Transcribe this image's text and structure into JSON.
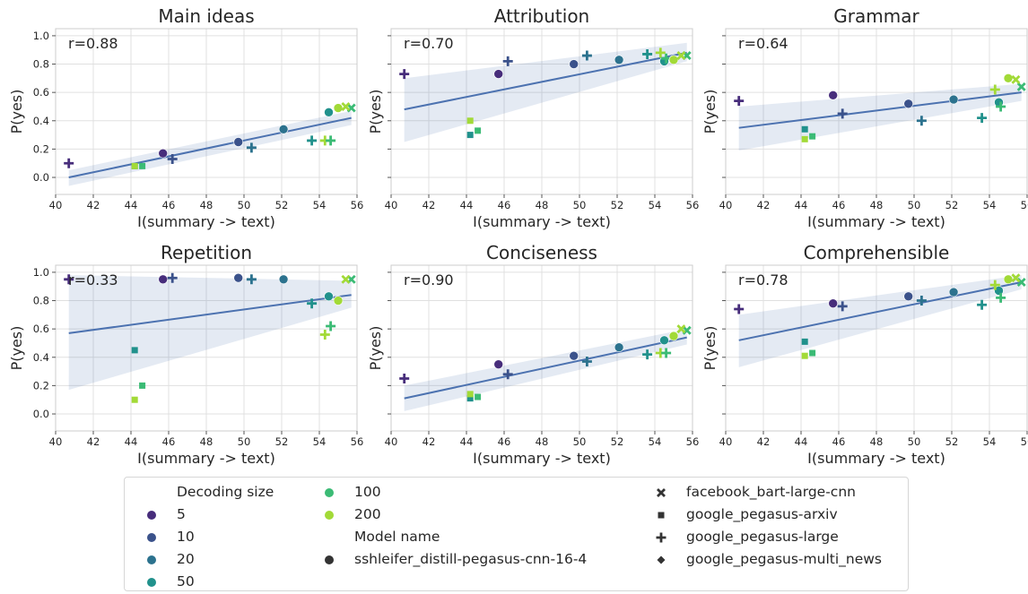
{
  "chart_data": {
    "type": "scatter",
    "xlabel": "I(summary -> text)",
    "ylabel": "P(yes)",
    "xlim": [
      40,
      56
    ],
    "ylim": [
      -0.12,
      1.05
    ],
    "xticks": [
      "40",
      "42",
      "44",
      "46",
      "48",
      "50",
      "52",
      "54",
      "56"
    ],
    "yticks": [
      "0.0",
      "0.2",
      "0.4",
      "0.6",
      "0.8",
      "1.0"
    ],
    "grid": true,
    "legend_position": "bottom",
    "hue_title": "Decoding size",
    "hue": [
      {
        "label": "5",
        "color": "#472d7b"
      },
      {
        "label": "10",
        "color": "#3b528b"
      },
      {
        "label": "20",
        "color": "#2c728e"
      },
      {
        "label": "50",
        "color": "#21918c"
      },
      {
        "label": "100",
        "color": "#3bbb75"
      },
      {
        "label": "200",
        "color": "#a2da37"
      }
    ],
    "style_title": "Model name",
    "styles": [
      {
        "label": "sshleifer_distill-pegasus-cnn-16-4",
        "marker": "circle"
      },
      {
        "label": "facebook_bart-large-cnn",
        "marker": "x"
      },
      {
        "label": "google_pegasus-arxiv",
        "marker": "square"
      },
      {
        "label": "google_pegasus-large",
        "marker": "plus"
      },
      {
        "label": "google_pegasus-multi_news",
        "marker": "diamond"
      }
    ],
    "points_x": [
      {
        "m": "plus",
        "h": 0,
        "x": 40.7
      },
      {
        "m": "circle",
        "h": 0,
        "x": 45.7
      },
      {
        "m": "plus",
        "h": 1,
        "x": 46.2
      },
      {
        "m": "circle",
        "h": 1,
        "x": 49.7
      },
      {
        "m": "plus",
        "h": 2,
        "x": 50.4
      },
      {
        "m": "circle",
        "h": 2,
        "x": 52.1
      },
      {
        "m": "plus",
        "h": 3,
        "x": 53.6
      },
      {
        "m": "circle",
        "h": 3,
        "x": 54.5
      },
      {
        "m": "square",
        "h": 3,
        "x": 44.2
      },
      {
        "m": "square",
        "h": 4,
        "x": 44.6
      },
      {
        "m": "square",
        "h": 5,
        "x": 44.2
      },
      {
        "m": "plus",
        "h": 5,
        "x": 54.3
      },
      {
        "m": "plus",
        "h": 4,
        "x": 54.6
      },
      {
        "m": "circle",
        "h": 5,
        "x": 55.0
      },
      {
        "m": "x",
        "h": 4,
        "x": 55.7
      },
      {
        "m": "x",
        "h": 5,
        "x": 55.4
      }
    ],
    "panels": [
      {
        "title": "Main ideas",
        "r": "r=0.88",
        "y": [
          0.1,
          0.17,
          0.13,
          0.25,
          0.21,
          0.34,
          0.26,
          0.46,
          0.08,
          0.08,
          0.08,
          0.26,
          0.26,
          0.49,
          0.49,
          0.5
        ],
        "fit": [
          0.0,
          0.42
        ],
        "band_start": [
          -0.06,
          0.05
        ],
        "band_end": [
          0.37,
          0.47
        ]
      },
      {
        "title": "Attribution",
        "r": "r=0.70",
        "y": [
          0.73,
          0.73,
          0.82,
          0.8,
          0.86,
          0.83,
          0.87,
          0.82,
          0.3,
          0.33,
          0.4,
          0.88,
          0.84,
          0.83,
          0.86,
          0.86
        ],
        "fit": [
          0.48,
          0.88
        ],
        "band_start": [
          0.25,
          0.7
        ],
        "band_end": [
          0.82,
          0.95
        ]
      },
      {
        "title": "Grammar",
        "r": "r=0.64",
        "y": [
          0.54,
          0.58,
          0.45,
          0.52,
          0.4,
          0.55,
          0.42,
          0.53,
          0.34,
          0.29,
          0.27,
          0.62,
          0.5,
          0.7,
          0.64,
          0.69
        ],
        "fit": [
          0.35,
          0.6
        ],
        "band_start": [
          0.19,
          0.5
        ],
        "band_end": [
          0.54,
          0.66
        ]
      },
      {
        "title": "Repetition",
        "r": "r=0.33",
        "y": [
          0.95,
          0.95,
          0.96,
          0.96,
          0.95,
          0.95,
          0.78,
          0.83,
          0.45,
          0.2,
          0.1,
          0.56,
          0.62,
          0.8,
          0.95,
          0.95
        ],
        "fit": [
          0.57,
          0.84
        ],
        "band_start": [
          0.17,
          0.98
        ],
        "band_end": [
          0.75,
          0.94
        ]
      },
      {
        "title": "Conciseness",
        "r": "r=0.90",
        "y": [
          0.25,
          0.35,
          0.28,
          0.41,
          0.37,
          0.47,
          0.42,
          0.52,
          0.11,
          0.12,
          0.14,
          0.43,
          0.43,
          0.55,
          0.59,
          0.6
        ],
        "fit": [
          0.11,
          0.54
        ],
        "band_start": [
          0.02,
          0.2
        ],
        "band_end": [
          0.49,
          0.6
        ]
      },
      {
        "title": "Comprehensible",
        "r": "r=0.78",
        "y": [
          0.74,
          0.78,
          0.76,
          0.83,
          0.8,
          0.86,
          0.77,
          0.87,
          0.51,
          0.43,
          0.41,
          0.91,
          0.82,
          0.95,
          0.93,
          0.96
        ],
        "fit": [
          0.52,
          0.93
        ],
        "band_start": [
          0.33,
          0.7
        ],
        "band_end": [
          0.88,
          0.98
        ]
      }
    ]
  },
  "legend": {
    "hue_title": "Decoding size",
    "hue_labels": [
      "5",
      "10",
      "20",
      "50",
      "100",
      "200"
    ],
    "style_title": "Model name",
    "style_labels": [
      "sshleifer_distill-pegasus-cnn-16-4",
      "facebook_bart-large-cnn",
      "google_pegasus-arxiv",
      "google_pegasus-large",
      "google_pegasus-multi_news"
    ]
  }
}
